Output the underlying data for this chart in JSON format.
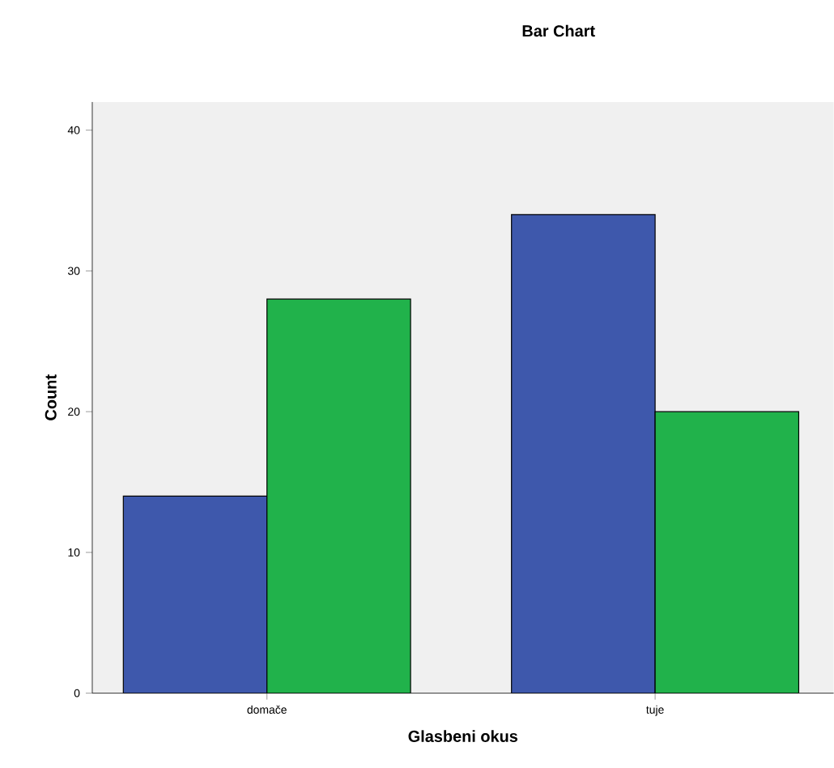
{
  "chart_data": {
    "type": "bar",
    "title": "Bar Chart",
    "xlabel": "Glasbeni okus",
    "ylabel": "Count",
    "categories": [
      "domače",
      "tuje"
    ],
    "series": [
      {
        "color": "#3e58ac",
        "values": [
          14,
          34
        ]
      },
      {
        "color": "#21b24b",
        "values": [
          28,
          20
        ]
      }
    ],
    "ylim": [
      0,
      42
    ],
    "yticks": [
      0,
      10,
      20,
      30,
      40
    ],
    "grid": false
  }
}
